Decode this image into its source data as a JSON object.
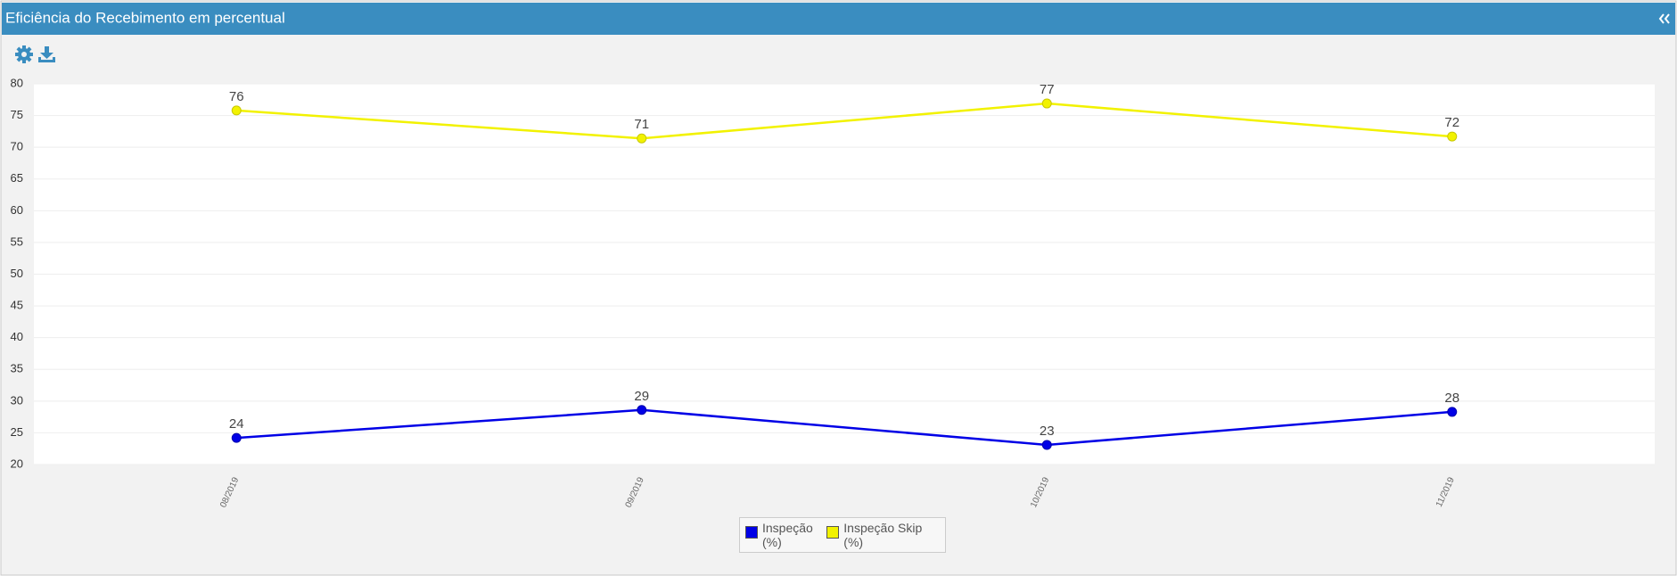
{
  "chart_data": {
    "type": "line",
    "title": "Eficiência do Recebimento em percentual",
    "categories": [
      "08/2019",
      "09/2019",
      "10/2019",
      "11/2019"
    ],
    "series": [
      {
        "name": "Inspeção (%)",
        "color": "#0000e6",
        "values": [
          24.2,
          28.6,
          23.1,
          28.3
        ],
        "value_labels": [
          "24",
          "29",
          "23",
          "28"
        ]
      },
      {
        "name": "Inspeção Skip (%)",
        "color": "#f2f200",
        "values": [
          75.8,
          71.4,
          76.9,
          71.7
        ],
        "value_labels": [
          "76",
          "71",
          "77",
          "72"
        ]
      }
    ],
    "ylim": [
      20,
      80
    ],
    "yticks": [
      20,
      25,
      30,
      35,
      40,
      45,
      50,
      55,
      60,
      65,
      70,
      75,
      80
    ],
    "grid": true,
    "legend": "bottom"
  }
}
